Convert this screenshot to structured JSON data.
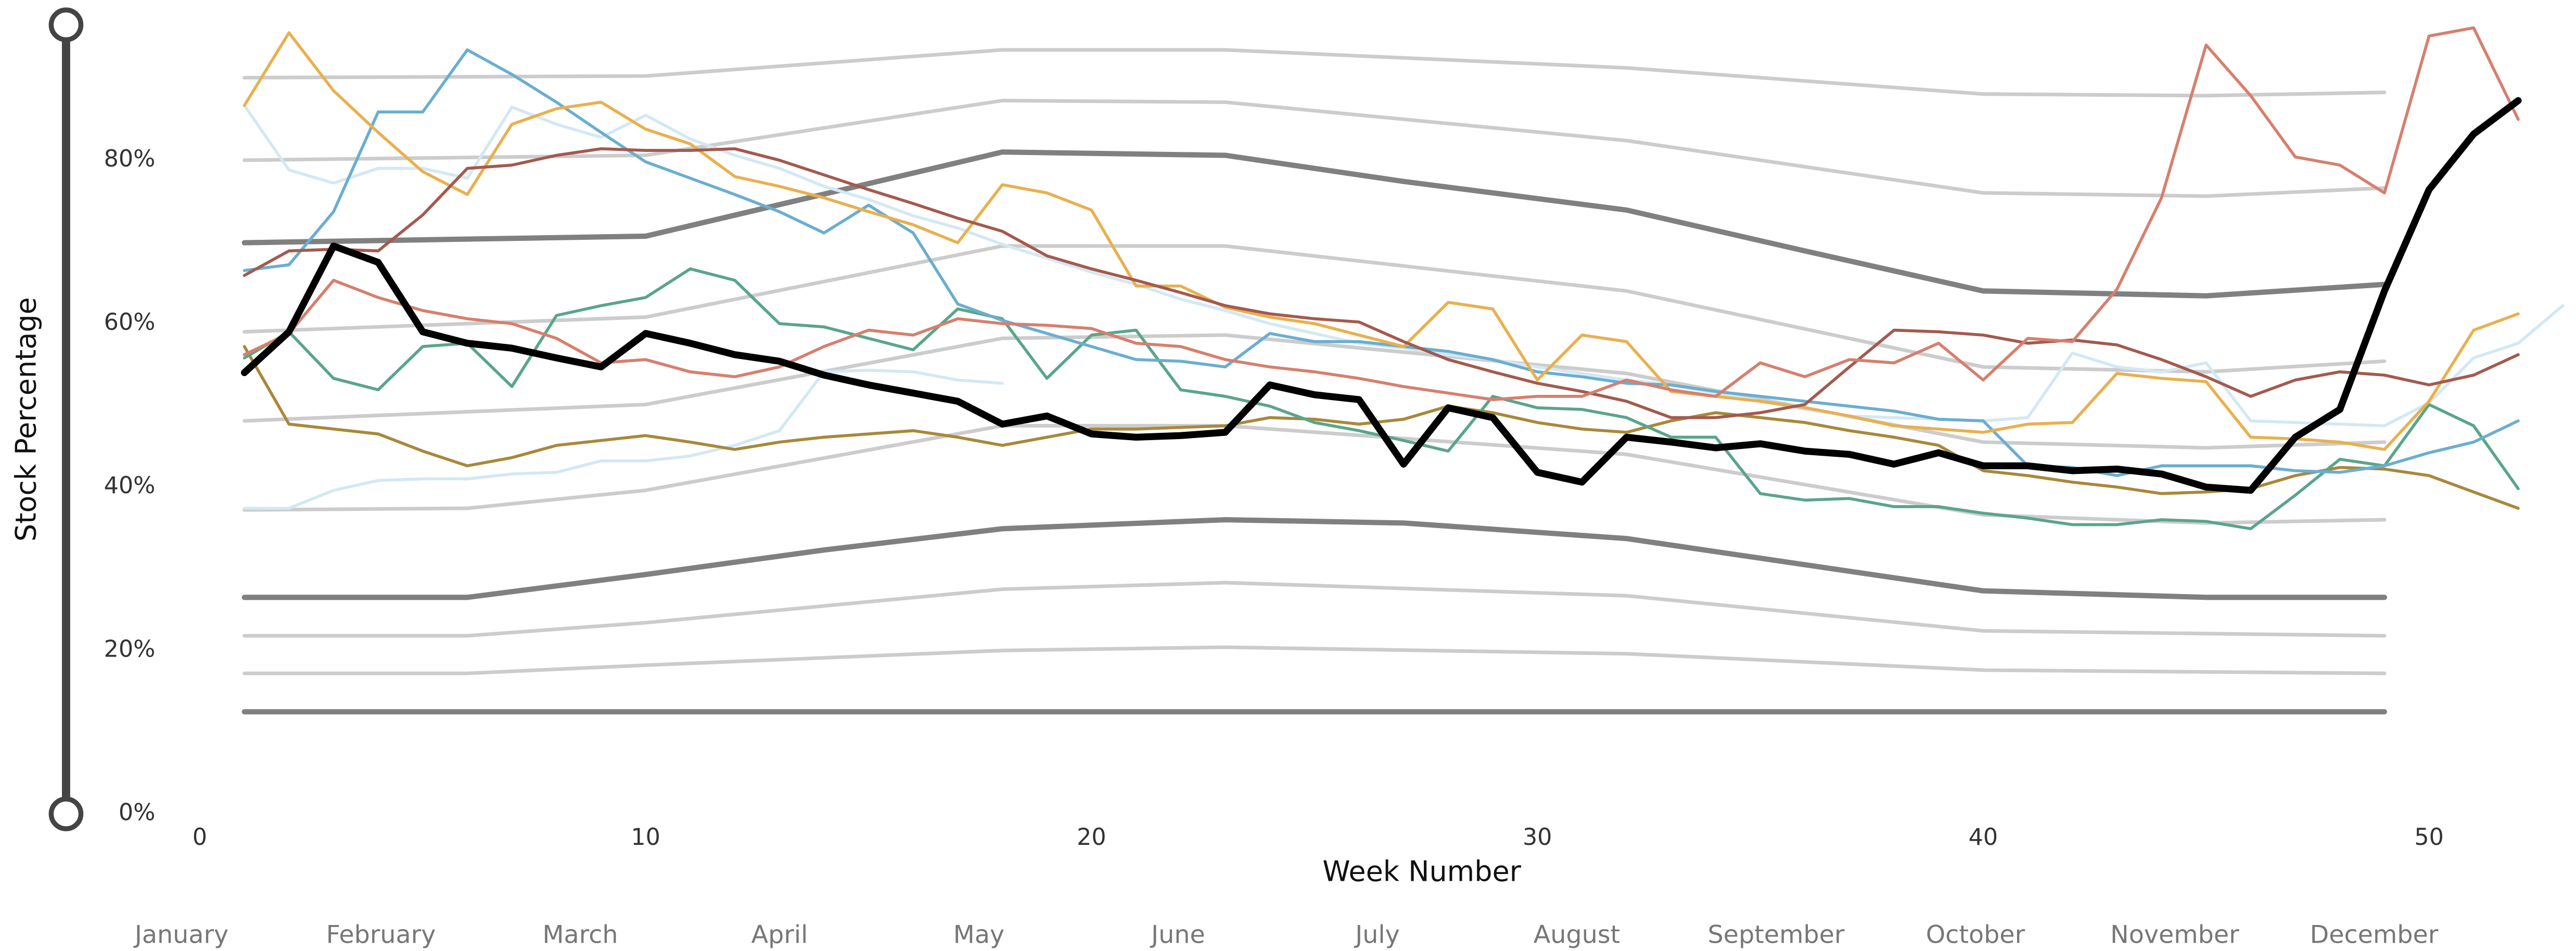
{
  "chart_data": {
    "type": "line",
    "x_label": "Week Number",
    "y_label": "Stock Percentage",
    "xlim": [
      0,
      53
    ],
    "ylim": [
      0,
      100
    ],
    "xticks": [
      0,
      10,
      20,
      30,
      40,
      50
    ],
    "yticks": [
      {
        "value": 0,
        "label": "0%"
      },
      {
        "value": 20,
        "label": "20%"
      },
      {
        "value": 40,
        "label": "40%"
      },
      {
        "value": 60,
        "label": "60%"
      },
      {
        "value": 80,
        "label": "80%"
      }
    ],
    "month_labels": [
      "January",
      "February",
      "March",
      "April",
      "May",
      "June",
      "July",
      "August",
      "September",
      "October",
      "November",
      "December"
    ],
    "x": [
      1,
      2,
      3,
      4,
      5,
      6,
      7,
      8,
      9,
      10,
      11,
      12,
      13,
      14,
      15,
      16,
      17,
      18,
      19,
      20,
      21,
      22,
      23,
      24,
      25,
      26,
      27,
      28,
      29,
      30,
      31,
      32,
      33,
      34,
      35,
      36,
      37,
      38,
      39,
      40,
      41,
      42,
      43,
      44,
      45,
      46,
      47,
      48,
      49,
      50,
      51,
      52
    ],
    "series": [
      {
        "color": "#cccccc",
        "linewidth": 2.2,
        "x": [
          1,
          10,
          18,
          23,
          32,
          40,
          45,
          49
        ],
        "values": [
          90.1,
          90.3,
          93.5,
          93.5,
          91.3,
          88.1,
          87.9,
          88.3
        ]
      },
      {
        "color": "#cccccc",
        "linewidth": 2.2,
        "x": [
          1,
          10,
          18,
          23,
          32,
          40,
          45,
          49
        ],
        "values": [
          80,
          80.6,
          87.3,
          87.1,
          82.4,
          76,
          75.6,
          76.6
        ]
      },
      {
        "color": "#808080",
        "linewidth": 3.2,
        "x": [
          1,
          10,
          18,
          23,
          27,
          32,
          36,
          40,
          45,
          49
        ],
        "values": [
          69.9,
          70.7,
          81,
          80.6,
          77.4,
          73.9,
          68.9,
          64,
          63.4,
          64.8
        ]
      },
      {
        "color": "#cccccc",
        "linewidth": 2.2,
        "x": [
          1,
          10,
          18,
          23,
          32,
          40,
          45,
          49
        ],
        "values": [
          59,
          60.8,
          69.5,
          69.5,
          64,
          54.7,
          54.1,
          55.4
        ]
      },
      {
        "color": "#cccccc",
        "linewidth": 2.2,
        "x": [
          1,
          10,
          18,
          23,
          32,
          40,
          45,
          49
        ],
        "values": [
          48.1,
          50.1,
          58.2,
          58.6,
          53.9,
          45.5,
          44.8,
          45.5
        ]
      },
      {
        "color": "#cccccc",
        "linewidth": 2.2,
        "x": [
          1,
          6,
          10,
          18,
          23,
          32,
          40,
          45,
          49
        ],
        "values": [
          37.2,
          37.4,
          39.6,
          47.5,
          47.5,
          44,
          36.6,
          35.6,
          36
        ]
      },
      {
        "color": "#808080",
        "linewidth": 3.2,
        "x": [
          1,
          6,
          10,
          14,
          18,
          23,
          27,
          32,
          40,
          45,
          49
        ],
        "values": [
          26.5,
          26.5,
          29.3,
          32.3,
          34.9,
          36,
          35.6,
          33.7,
          27.3,
          26.5,
          26.5
        ]
      },
      {
        "color": "#cccccc",
        "linewidth": 2.2,
        "x": [
          1,
          6,
          10,
          18,
          23,
          32,
          40,
          49
        ],
        "values": [
          21.8,
          21.8,
          23.4,
          27.5,
          28.3,
          26.7,
          22.4,
          21.8
        ]
      },
      {
        "color": "#cccccc",
        "linewidth": 2.2,
        "x": [
          1,
          6,
          10,
          18,
          23,
          32,
          40,
          49
        ],
        "values": [
          17.2,
          17.2,
          18.2,
          20,
          20.4,
          19.6,
          17.6,
          17.2
        ]
      },
      {
        "color": "#808080",
        "linewidth": 3.2,
        "x": [
          1,
          49
        ],
        "values": [
          12.5,
          12.5
        ]
      },
      {
        "color": "#d3e8f4",
        "linewidth": 1.8,
        "x": [
          1,
          2,
          3,
          4,
          5,
          6,
          7,
          8,
          9,
          10,
          11,
          12,
          13,
          14,
          15,
          16,
          17,
          18,
          19,
          20,
          21,
          22,
          23,
          24,
          25,
          26,
          27,
          28,
          29,
          30,
          31,
          32,
          33,
          34,
          35,
          36,
          37,
          38,
          39,
          40,
          41,
          42,
          43,
          44,
          45,
          46,
          47,
          48,
          49,
          50,
          51,
          52,
          53
        ],
        "values": [
          86.7,
          78.8,
          77.2,
          79,
          79,
          77.8,
          86.5,
          84.4,
          82.8,
          85.5,
          82.6,
          80.6,
          79,
          76.8,
          75.2,
          73.2,
          71.7,
          69.7,
          68,
          66.3,
          64.8,
          63,
          61.6,
          60,
          58.8,
          57.6,
          57,
          56.2,
          55.6,
          54.7,
          53.9,
          53.1,
          52.5,
          51.5,
          50.5,
          49.5,
          48.7,
          48.5,
          48.3,
          48.1,
          48.5,
          56.4,
          54.7,
          54.1,
          55.2,
          48.1,
          47.9,
          47.7,
          47.5,
          50.3,
          55.8,
          57.6,
          62.2
        ]
      },
      {
        "color": "#d3e8f4",
        "linewidth": 1.8,
        "x": [
          1,
          2,
          3,
          4,
          5,
          6,
          7,
          8,
          9,
          10,
          11,
          12,
          13,
          14,
          15,
          16,
          17,
          18
        ],
        "values": [
          37.4,
          37.4,
          39.6,
          40.8,
          41,
          41,
          41.6,
          41.8,
          43.2,
          43.2,
          43.8,
          45.1,
          46.9,
          54.1,
          54.3,
          54.1,
          53.1,
          52.7
        ]
      },
      {
        "color": "#a8883a",
        "linewidth": 1.8,
        "values": [
          57.2,
          47.7,
          47.1,
          46.5,
          44.4,
          42.6,
          43.6,
          45.1,
          45.7,
          46.3,
          45.5,
          44.6,
          45.5,
          46.1,
          46.5,
          46.9,
          46.1,
          45.1,
          46.1,
          47.1,
          47.1,
          47.3,
          47.5,
          48.5,
          48.3,
          47.7,
          48.3,
          49.9,
          49.1,
          47.9,
          47.1,
          46.7,
          48.1,
          49.1,
          48.5,
          47.9,
          46.9,
          46.1,
          45.1,
          42,
          41.4,
          40.6,
          40,
          39.2,
          39.4,
          39.8,
          41.4,
          42.4,
          42.2,
          41.4,
          39.4,
          37.4
        ]
      },
      {
        "color": "#5aa58a",
        "linewidth": 1.8,
        "values": [
          55.8,
          59,
          53.3,
          51.9,
          57.2,
          57.6,
          52.3,
          61,
          62.2,
          63.2,
          66.7,
          65.3,
          60,
          59.6,
          58.2,
          56.8,
          61.8,
          60.6,
          53.3,
          58.6,
          59.2,
          51.9,
          51.1,
          49.9,
          47.9,
          46.9,
          45.7,
          44.4,
          51.1,
          49.7,
          49.5,
          48.5,
          46.1,
          46.1,
          39.2,
          38.4,
          38.6,
          37.6,
          37.6,
          36.8,
          36.2,
          35.4,
          35.4,
          36,
          35.8,
          34.9,
          39,
          43.4,
          42.6,
          50.1,
          47.5,
          39.8
        ]
      },
      {
        "color": "#6aaed0",
        "linewidth": 1.8,
        "values": [
          66.5,
          67.2,
          73.7,
          85.9,
          85.9,
          93.5,
          90.5,
          87.1,
          83.4,
          79.8,
          77.8,
          75.8,
          73.7,
          71.1,
          74.5,
          71.1,
          62.4,
          60.4,
          58.8,
          57.2,
          55.6,
          55.4,
          54.7,
          58.8,
          57.8,
          57.8,
          57.2,
          56.6,
          55.6,
          54.1,
          53.5,
          52.7,
          52.5,
          51.7,
          51.1,
          50.5,
          49.9,
          49.3,
          48.3,
          48.1,
          42.6,
          42.4,
          41.4,
          42.6,
          42.6,
          42.6,
          42,
          41.8,
          42.6,
          44.2,
          45.5,
          48.1
        ]
      },
      {
        "color": "#e8b04f",
        "linewidth": 1.8,
        "values": [
          86.7,
          95.6,
          88.5,
          83.4,
          78.6,
          75.8,
          84.4,
          86.3,
          87.1,
          83.8,
          82,
          78,
          76.8,
          75.4,
          73.7,
          72.1,
          69.9,
          77,
          76,
          73.9,
          64.6,
          64.6,
          62,
          60.8,
          60,
          58.6,
          57.2,
          62.6,
          61.8,
          53.1,
          58.6,
          57.8,
          51.7,
          51.1,
          50.5,
          49.7,
          48.7,
          47.5,
          47.1,
          46.7,
          47.7,
          47.9,
          53.9,
          53.3,
          52.9,
          46.1,
          45.9,
          45.5,
          44.6,
          50.5,
          59.2,
          61.2
        ]
      },
      {
        "color": "#a35a4e",
        "linewidth": 1.8,
        "values": [
          65.9,
          68.9,
          69.1,
          68.9,
          73.3,
          79,
          79.4,
          80.6,
          81.4,
          81.2,
          81.2,
          81.4,
          80,
          78.2,
          76.4,
          74.7,
          72.9,
          71.3,
          68.3,
          66.7,
          65.3,
          63.8,
          62.2,
          61.2,
          60.6,
          60.2,
          57.8,
          55.6,
          54.1,
          52.7,
          51.7,
          50.5,
          48.5,
          48.5,
          49.1,
          50.1,
          54.7,
          59.2,
          59,
          58.6,
          57.6,
          58,
          57.4,
          55.6,
          53.5,
          51.1,
          53.1,
          54.1,
          53.7,
          52.5,
          53.7,
          56.2
        ]
      },
      {
        "color": "#d67f6e",
        "linewidth": 1.8,
        "values": [
          56.2,
          58.8,
          65.3,
          63.2,
          61.6,
          60.6,
          60,
          58.2,
          55.2,
          55.6,
          54.1,
          53.5,
          54.7,
          57.2,
          59.2,
          58.6,
          60.6,
          60,
          59.8,
          59.4,
          57.6,
          57.2,
          55.6,
          54.7,
          54.1,
          53.3,
          52.3,
          51.5,
          50.7,
          51.1,
          51.1,
          53.1,
          51.9,
          51.1,
          55.2,
          53.5,
          55.6,
          55.2,
          57.6,
          53.1,
          58.2,
          57.8,
          64.2,
          75.4,
          94.1,
          87.9,
          80.4,
          79.4,
          76,
          95.2,
          96.2,
          85
        ]
      },
      {
        "color": "#000000",
        "linewidth": 4.2,
        "values": [
          54,
          59,
          69.5,
          67.5,
          59,
          57.6,
          57,
          55.8,
          54.7,
          58.8,
          57.6,
          56.2,
          55.4,
          53.7,
          52.5,
          51.5,
          50.5,
          47.7,
          48.7,
          46.5,
          46.1,
          46.3,
          46.7,
          52.5,
          51.3,
          50.7,
          42.8,
          49.7,
          48.5,
          41.8,
          40.6,
          46.1,
          45.5,
          44.8,
          45.3,
          44.4,
          44,
          42.8,
          44.2,
          42.6,
          42.6,
          42,
          42.2,
          41.6,
          40,
          39.6,
          46.1,
          49.5,
          64,
          76.4,
          83.2,
          87.3
        ]
      }
    ]
  }
}
